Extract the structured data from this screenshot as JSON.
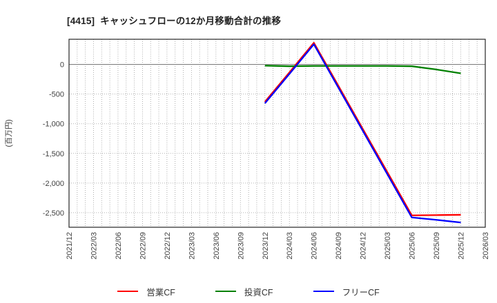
{
  "chart_data": {
    "type": "line",
    "title": "[4415]  キャッシュフローの12か月移動合計の推移",
    "ylabel": "(百万円)",
    "x_ticks": [
      "2021/12",
      "2022/03",
      "2022/06",
      "2022/09",
      "2022/12",
      "2023/03",
      "2023/06",
      "2023/09",
      "2023/12",
      "2024/03",
      "2024/06",
      "2024/09",
      "2024/12",
      "2025/03",
      "2025/06",
      "2025/09",
      "2025/12",
      "2026/03"
    ],
    "y_ticks": [
      0,
      -500,
      -1000,
      -1500,
      -2000,
      -2500
    ],
    "ylim": [
      -2745,
      425
    ],
    "grid": true,
    "minor_x_divisions_per_interval": 3,
    "legend_position": "bottom",
    "axis_color": "#262626",
    "zero_line_color": "#808080",
    "grid_color": "#9a9a9a",
    "tick_label_color": "#404040",
    "series": [
      {
        "name": "営業CF",
        "color": "#ff0000",
        "x": [
          "2023/12",
          "2024/03",
          "2024/06",
          "2024/09",
          "2024/12",
          "2025/03",
          "2025/06",
          "2025/09",
          "2025/12"
        ],
        "values": [
          -630,
          -135,
          365,
          -360,
          -1090,
          -1815,
          -2545,
          -2540,
          -2535
        ]
      },
      {
        "name": "投資CF",
        "color": "#008000",
        "x": [
          "2023/12",
          "2024/03",
          "2024/06",
          "2024/09",
          "2024/12",
          "2025/03",
          "2025/06",
          "2025/09",
          "2025/12"
        ],
        "values": [
          -20,
          -30,
          -25,
          -25,
          -25,
          -25,
          -30,
          -85,
          -150
        ]
      },
      {
        "name": "フリーCF",
        "color": "#0000ff",
        "x": [
          "2023/12",
          "2024/03",
          "2024/06",
          "2024/09",
          "2024/12",
          "2025/03",
          "2025/06",
          "2025/09",
          "2025/12"
        ],
        "values": [
          -655,
          -160,
          340,
          -390,
          -1120,
          -1850,
          -2580,
          -2620,
          -2665
        ]
      }
    ]
  }
}
